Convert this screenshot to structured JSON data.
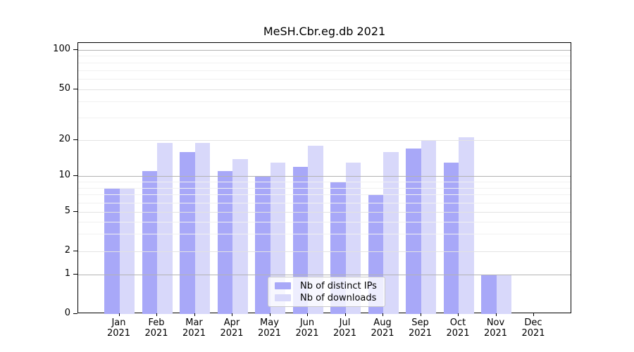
{
  "title": "MeSH.Cbr.eg.db 2021",
  "colors": {
    "distinct_ips": "#a8a8f8",
    "downloads": "#d8d8fa",
    "grid_major": "#b3b3b3",
    "grid_labeled": "#e3e3e3",
    "grid_minor": "#f1f1f1",
    "axis": "#000000",
    "legend_border": "#c9c9c9"
  },
  "y_axis": {
    "tick_labels": [
      "100",
      "50",
      "20",
      "10",
      "5",
      "2",
      "1",
      "0"
    ],
    "tick_values": [
      100,
      50,
      20,
      10,
      5,
      2,
      1,
      0
    ]
  },
  "x_axis": {
    "labels": [
      [
        "Jan",
        "2021"
      ],
      [
        "Feb",
        "2021"
      ],
      [
        "Mar",
        "2021"
      ],
      [
        "Apr",
        "2021"
      ],
      [
        "May",
        "2021"
      ],
      [
        "Jun",
        "2021"
      ],
      [
        "Jul",
        "2021"
      ],
      [
        "Aug",
        "2021"
      ],
      [
        "Sep",
        "2021"
      ],
      [
        "Oct",
        "2021"
      ],
      [
        "Nov",
        "2021"
      ],
      [
        "Dec",
        "2021"
      ]
    ]
  },
  "legend": {
    "items": [
      {
        "label": "Nb of distinct IPs",
        "color_key": "distinct_ips"
      },
      {
        "label": "Nb of downloads",
        "color_key": "downloads"
      }
    ]
  },
  "chart_data": {
    "type": "bar",
    "title": "MeSH.Cbr.eg.db 2021",
    "categories": [
      "Jan 2021",
      "Feb 2021",
      "Mar 2021",
      "Apr 2021",
      "May 2021",
      "Jun 2021",
      "Jul 2021",
      "Aug 2021",
      "Sep 2021",
      "Oct 2021",
      "Nov 2021",
      "Dec 2021"
    ],
    "series": [
      {
        "name": "Nb of distinct IPs",
        "color_key": "distinct_ips",
        "values": [
          8,
          11,
          16,
          11,
          10,
          12,
          9,
          7,
          17,
          13,
          1,
          0
        ]
      },
      {
        "name": "Nb of downloads",
        "color_key": "downloads",
        "values": [
          8,
          19,
          19,
          14,
          13,
          18,
          13,
          16,
          20,
          21,
          1,
          0
        ]
      }
    ],
    "xlabel": "",
    "ylabel": "",
    "yscale": "log-like (0,1,2,5,10,20,50,100)",
    "ylim": [
      0,
      100
    ],
    "grid": true,
    "legend_position": "inside bottom-center"
  }
}
